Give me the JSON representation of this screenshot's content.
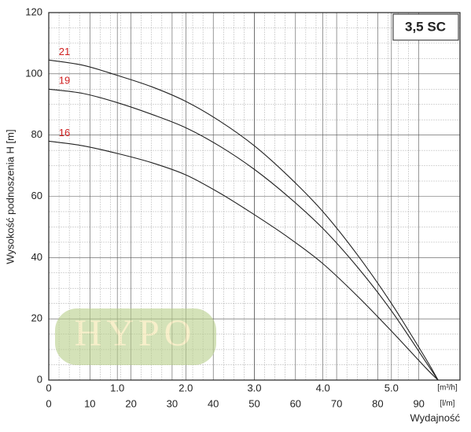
{
  "chart_data": {
    "type": "line",
    "title": "3,5 SC",
    "ylabel": "Wysokość podnoszenia H [m]",
    "xlabel": "Wydajność",
    "xunit": "[m³/h]",
    "x2unit": "[l/m]",
    "watermark": "HYPO",
    "x": [
      0,
      0.5,
      1,
      1.5,
      2,
      2.5,
      3,
      3.5,
      4,
      4.5,
      5,
      5.5,
      5.68
    ],
    "series": [
      {
        "name": "21",
        "color": "#222222",
        "values": [
          104.5,
          102.8,
          99.5,
          95.8,
          91,
          84.5,
          76.5,
          66.5,
          55,
          41,
          25,
          7,
          0
        ]
      },
      {
        "name": "19",
        "color": "#222222",
        "values": [
          95,
          93.6,
          90.6,
          86.8,
          82.4,
          76.3,
          68.8,
          59.8,
          49.5,
          37,
          22.6,
          6,
          0
        ]
      },
      {
        "name": "16",
        "color": "#222222",
        "values": [
          78,
          76.5,
          74,
          71,
          67,
          61,
          54,
          46.5,
          38,
          27.5,
          16,
          4,
          0
        ]
      }
    ],
    "label_color": "#d02020",
    "xlim": [
      0,
      6
    ],
    "xticks": [
      0,
      {
        "value": 1,
        "label": "1.0"
      },
      {
        "value": 2,
        "label": "2.0"
      },
      {
        "value": 3,
        "label": "3.0"
      },
      {
        "value": 4,
        "label": "4.0"
      },
      {
        "value": 5,
        "label": "5.0"
      }
    ],
    "x2lim": [
      0,
      100
    ],
    "x2ticks": [
      0,
      10,
      20,
      30,
      40,
      50,
      60,
      70,
      80,
      90
    ],
    "ylim": [
      0,
      120
    ],
    "yticks": [
      0,
      20,
      40,
      60,
      80,
      100,
      120
    ],
    "grid": true
  }
}
